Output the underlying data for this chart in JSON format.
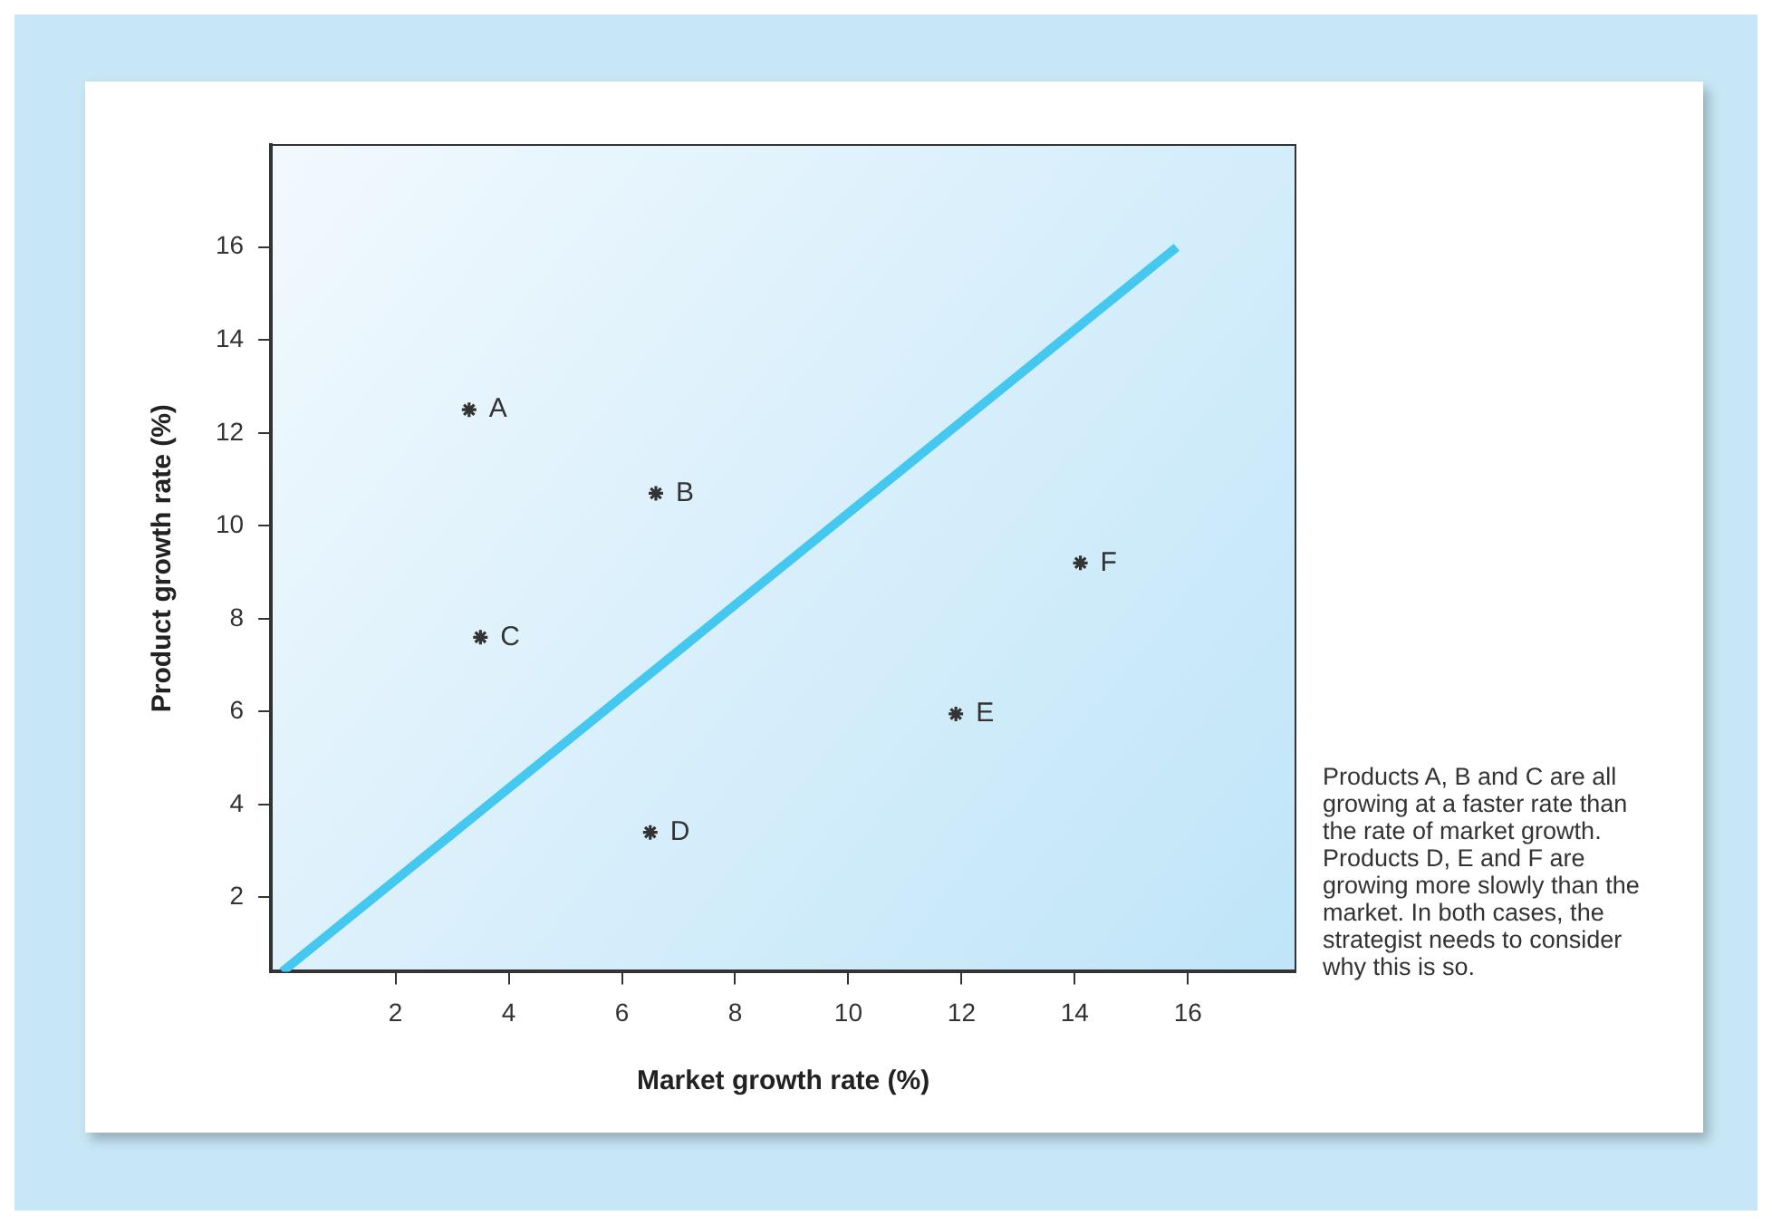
{
  "chart_data": {
    "type": "scatter",
    "xlabel": "Market growth rate (%)",
    "ylabel": "Product growth rate (%)",
    "series": [
      {
        "type": "scatter",
        "color": "#333333",
        "marker": "cross",
        "x": [
          3.3,
          6.6,
          3.5,
          6.5,
          11.9,
          14.1
        ],
        "values": [
          12.5,
          10.7,
          7.6,
          3.4,
          5.95,
          9.2
        ]
      },
      {
        "type": "line",
        "color": "#45c8f0",
        "marker": "none",
        "line_style": "solid",
        "x": [
          0,
          15.8
        ],
        "values": [
          0.4,
          16
        ]
      }
    ],
    "annotations": [
      {
        "text": "A",
        "x": 3.3,
        "y": 12.5
      },
      {
        "text": "B",
        "x": 6.6,
        "y": 10.7
      },
      {
        "text": "C",
        "x": 3.5,
        "y": 7.6
      },
      {
        "text": "D",
        "x": 6.5,
        "y": 3.4
      },
      {
        "text": "E",
        "x": 11.9,
        "y": 5.95
      },
      {
        "text": "F",
        "x": 14.1,
        "y": 9.2
      },
      "Products A, B and C are all growing at a faster rate than the rate of market growth. Products D, E and F are growing more slowly than the market. In both cases, the strategist needs to consider why this is so."
    ],
    "xlim": [
      -0.2,
      17.9
    ],
    "ylim": [
      0.4,
      18.2
    ],
    "xticks": [
      2,
      4,
      6,
      8,
      10,
      12,
      14,
      16
    ],
    "yticks": [
      2,
      4,
      6,
      8,
      10,
      12,
      14,
      16
    ],
    "grid": false,
    "legend": false
  }
}
